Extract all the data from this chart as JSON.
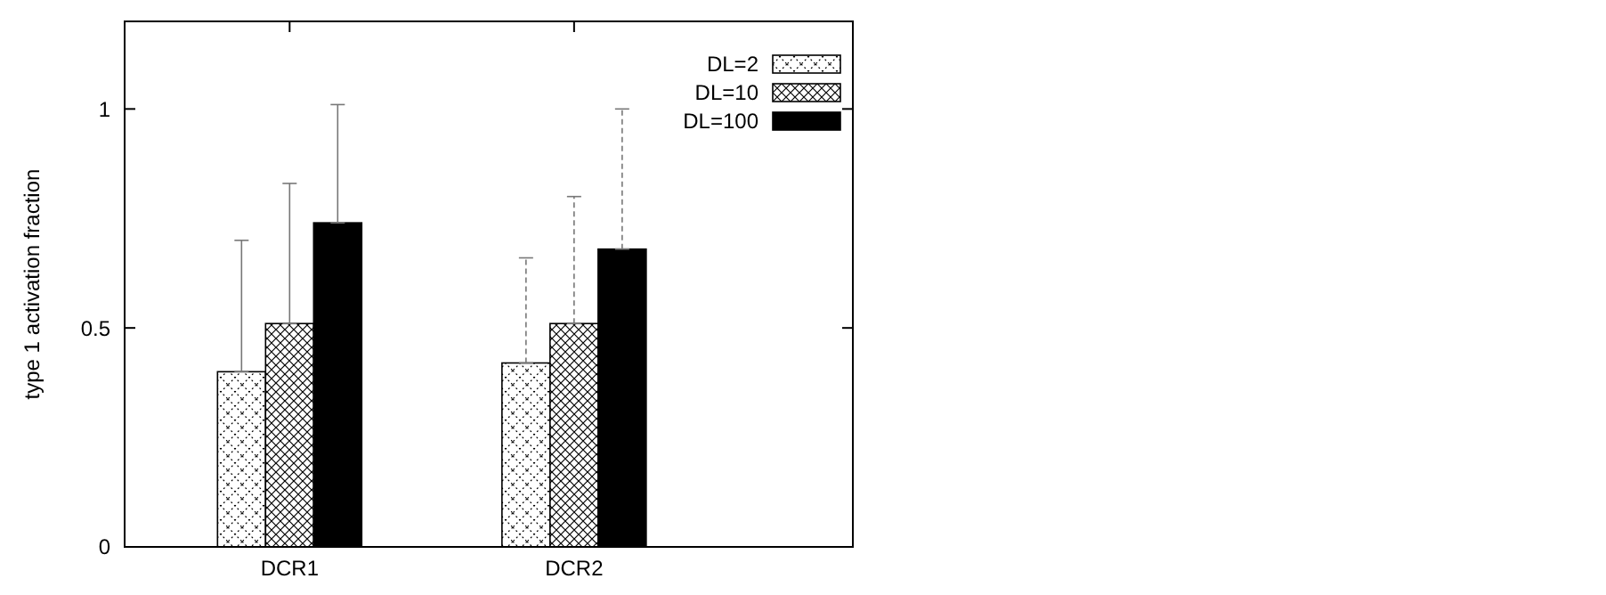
{
  "chart_data": {
    "type": "bar",
    "ylabel": "type 1 activation fraction",
    "categories": [
      "DCR1",
      "DCR2"
    ],
    "ylim": [
      0,
      1.2
    ],
    "yticks": [
      0,
      0.5,
      1
    ],
    "legend": "top right",
    "grid": false,
    "series": [
      {
        "name": "DL=2",
        "color": "#000000",
        "values": [
          0.4,
          0.42
        ],
        "errors": [
          [
            0.4,
            0.7
          ],
          [
            0.42,
            0.66
          ]
        ]
      },
      {
        "name": "DL=10",
        "color": "#000000",
        "values": [
          0.51,
          0.51
        ],
        "errors": [
          [
            0.51,
            0.83
          ],
          [
            0.51,
            0.8
          ]
        ]
      },
      {
        "name": "DL=100",
        "color": "#000000",
        "values": [
          0.74,
          0.68
        ],
        "errors": [
          [
            0.74,
            1.01
          ],
          [
            0.68,
            1.0
          ]
        ]
      }
    ]
  }
}
